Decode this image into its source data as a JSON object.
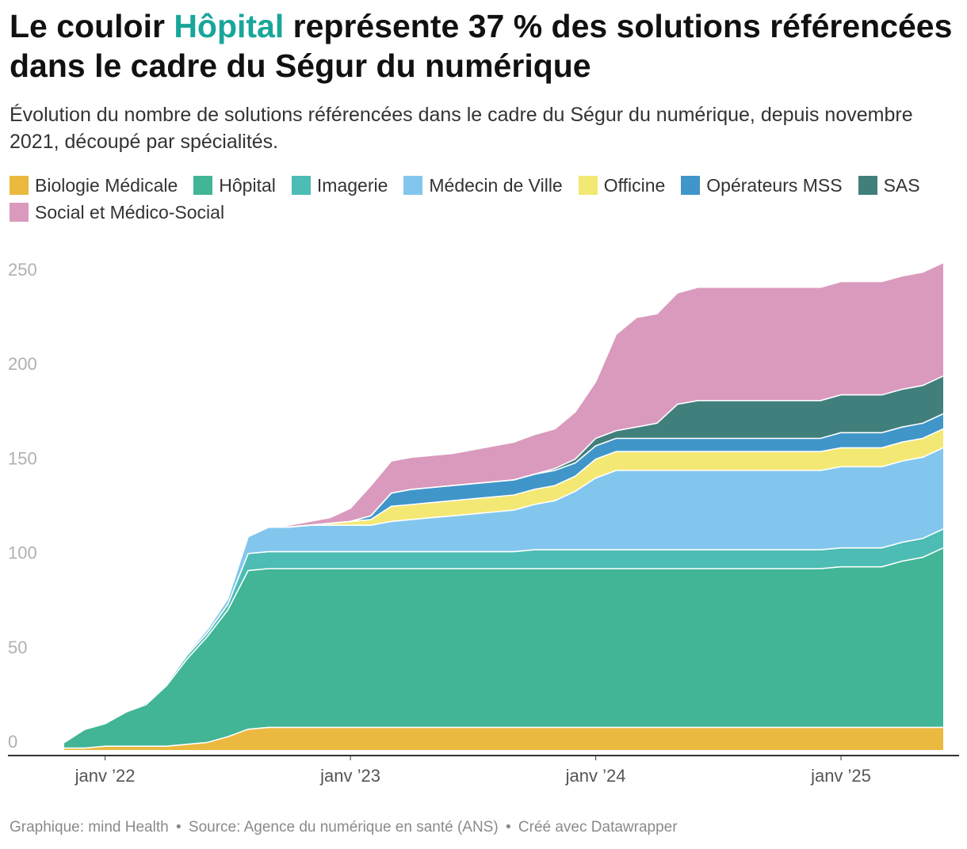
{
  "header": {
    "title_part1": "Le couloir ",
    "title_highlight": "Hôpital",
    "title_part2": " représente 37 % des solutions référencées dans le cadre du Ségur du numérique",
    "subtitle": "Évolution du nombre de solutions référencées dans le cadre du Ségur du numérique, depuis novembre 2021, découpé par spécialités."
  },
  "legend": [
    {
      "label": "Biologie Médicale",
      "color": "#ebb840"
    },
    {
      "label": "Hôpital",
      "color": "#41b596"
    },
    {
      "label": "Imagerie",
      "color": "#4cbcb4"
    },
    {
      "label": "Médecin de Ville",
      "color": "#82c6ee"
    },
    {
      "label": "Officine",
      "color": "#f3e873"
    },
    {
      "label": "Opérateurs MSS",
      "color": "#4096c9"
    },
    {
      "label": "SAS",
      "color": "#417f7c"
    },
    {
      "label": "Social et Médico-Social",
      "color": "#d99abd"
    }
  ],
  "footer": {
    "chart_by": "Graphique: mind Health",
    "source": "Source: Agence du numérique en santé (ANS)",
    "created_with": "Créé avec Datawrapper"
  },
  "chart_data": {
    "type": "area",
    "stacked": true,
    "title": "Le couloir Hôpital représente 37 % des solutions référencées dans le cadre du Ségur du numérique",
    "xlabel": "",
    "ylabel": "",
    "ylim": [
      0,
      260
    ],
    "yticks": [
      0,
      50,
      100,
      150,
      200,
      250
    ],
    "xtick_labels": [
      "janv ’22",
      "janv ’23",
      "janv ’24",
      "janv ’25"
    ],
    "xtick_dates": [
      "2022-01",
      "2023-01",
      "2024-01",
      "2025-01"
    ],
    "grid": false,
    "legend_position": "top",
    "x": [
      "2021-11",
      "2021-12",
      "2022-01",
      "2022-02",
      "2022-03",
      "2022-04",
      "2022-05",
      "2022-06",
      "2022-07",
      "2022-08",
      "2022-09",
      "2022-10",
      "2022-11",
      "2022-12",
      "2023-01",
      "2023-02",
      "2023-03",
      "2023-04",
      "2023-05",
      "2023-06",
      "2023-07",
      "2023-08",
      "2023-09",
      "2023-10",
      "2023-11",
      "2023-12",
      "2024-01",
      "2024-02",
      "2024-03",
      "2024-04",
      "2024-05",
      "2024-06",
      "2024-07",
      "2024-08",
      "2024-09",
      "2024-10",
      "2024-11",
      "2024-12",
      "2025-01",
      "2025-02",
      "2025-03",
      "2025-04",
      "2025-05",
      "2025-06"
    ],
    "series": [
      {
        "name": "Biologie Médicale",
        "color": "#ebb840",
        "values": [
          1,
          1,
          2,
          2,
          2,
          2,
          3,
          4,
          7,
          11,
          12,
          12,
          12,
          12,
          12,
          12,
          12,
          12,
          12,
          12,
          12,
          12,
          12,
          12,
          12,
          12,
          12,
          12,
          12,
          12,
          12,
          12,
          12,
          12,
          12,
          12,
          12,
          12,
          12,
          12,
          12,
          12,
          12,
          12
        ]
      },
      {
        "name": "Hôpital",
        "color": "#41b596",
        "values": [
          3,
          10,
          12,
          18,
          22,
          32,
          45,
          56,
          67,
          84,
          84,
          84,
          84,
          84,
          84,
          84,
          84,
          84,
          84,
          84,
          84,
          84,
          84,
          84,
          84,
          84,
          84,
          84,
          84,
          84,
          84,
          84,
          84,
          84,
          84,
          84,
          84,
          84,
          85,
          85,
          85,
          88,
          90,
          95
        ]
      },
      {
        "name": "Imagerie",
        "color": "#4cbcb4",
        "values": [
          0,
          0,
          0,
          0,
          1,
          1,
          2,
          2,
          3,
          9,
          9,
          9,
          9,
          9,
          9,
          9,
          9,
          9,
          9,
          9,
          9,
          9,
          9,
          10,
          10,
          10,
          10,
          10,
          10,
          10,
          10,
          10,
          10,
          10,
          10,
          10,
          10,
          10,
          10,
          10,
          10,
          10,
          10,
          10
        ]
      },
      {
        "name": "Médecin de Ville",
        "color": "#82c6ee",
        "values": [
          0,
          0,
          0,
          0,
          0,
          0,
          1,
          2,
          3,
          9,
          13,
          13,
          14,
          14,
          14,
          14,
          16,
          17,
          18,
          19,
          20,
          21,
          22,
          24,
          26,
          31,
          38,
          42,
          42,
          42,
          42,
          42,
          42,
          42,
          42,
          42,
          42,
          42,
          43,
          43,
          43,
          43,
          43,
          43
        ]
      },
      {
        "name": "Officine",
        "color": "#f3e873",
        "values": [
          0,
          0,
          0,
          0,
          0,
          0,
          0,
          0,
          0,
          0,
          0,
          0,
          0,
          1,
          2,
          3,
          8,
          8,
          8,
          8,
          8,
          8,
          8,
          8,
          8,
          8,
          10,
          10,
          10,
          10,
          10,
          10,
          10,
          10,
          10,
          10,
          10,
          10,
          10,
          10,
          10,
          10,
          10,
          10
        ]
      },
      {
        "name": "Opérateurs MSS",
        "color": "#4096c9",
        "values": [
          0,
          0,
          0,
          0,
          0,
          0,
          0,
          0,
          0,
          0,
          0,
          0,
          0,
          0,
          0,
          2,
          7,
          8,
          8,
          8,
          8,
          8,
          8,
          8,
          8,
          7,
          7,
          7,
          7,
          7,
          7,
          7,
          7,
          7,
          7,
          7,
          7,
          7,
          8,
          8,
          8,
          8,
          8,
          8
        ]
      },
      {
        "name": "SAS",
        "color": "#417f7c",
        "values": [
          0,
          0,
          0,
          0,
          0,
          0,
          0,
          0,
          0,
          0,
          0,
          0,
          0,
          0,
          0,
          0,
          0,
          0,
          0,
          0,
          0,
          0,
          0,
          0,
          1,
          2,
          4,
          4,
          6,
          8,
          18,
          20,
          20,
          20,
          20,
          20,
          20,
          20,
          20,
          20,
          20,
          20,
          20,
          20
        ]
      },
      {
        "name": "Social et Médico-Social",
        "color": "#d99abd",
        "values": [
          0,
          0,
          0,
          0,
          0,
          0,
          0,
          0,
          0,
          0,
          0,
          1,
          2,
          3,
          7,
          16,
          17,
          17,
          17,
          17,
          18,
          19,
          20,
          21,
          21,
          25,
          30,
          51,
          58,
          58,
          59,
          60,
          60,
          60,
          60,
          60,
          60,
          60,
          60,
          60,
          60,
          60,
          60,
          60
        ]
      }
    ]
  }
}
